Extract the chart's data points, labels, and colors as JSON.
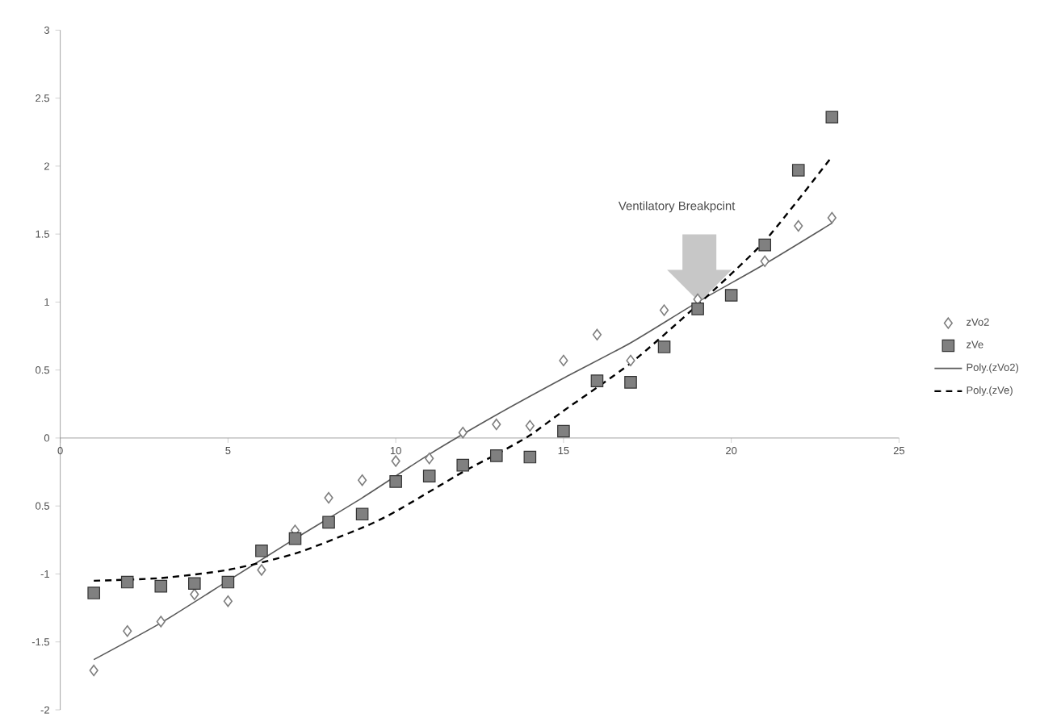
{
  "chart_data": {
    "type": "scatter",
    "x": [
      1,
      2,
      3,
      4,
      5,
      6,
      7,
      8,
      9,
      10,
      11,
      12,
      13,
      14,
      15,
      16,
      17,
      18,
      19,
      20,
      21,
      22,
      23
    ],
    "series": [
      {
        "name": "zVo2",
        "marker": "diamond",
        "color": "#7f7f7f",
        "values": [
          -1.71,
          -1.42,
          -1.35,
          -1.15,
          -1.2,
          -0.97,
          -0.68,
          -0.44,
          -0.31,
          -0.17,
          -0.15,
          0.04,
          0.1,
          0.09,
          0.57,
          0.76,
          0.57,
          0.94,
          1.02,
          null,
          1.3,
          1.56,
          1.62
        ]
      },
      {
        "name": "zVe",
        "marker": "square",
        "color": "#808080",
        "values": [
          -1.14,
          -1.06,
          -1.09,
          -1.07,
          -1.06,
          -0.83,
          -0.74,
          -0.62,
          -0.56,
          -0.32,
          -0.28,
          -0.2,
          -0.13,
          -0.14,
          0.05,
          0.42,
          0.41,
          0.67,
          0.95,
          1.05,
          1.42,
          1.97,
          2.36
        ]
      },
      {
        "name": "Poly.(zVo2)",
        "type": "line",
        "marker": "none",
        "line_style": "solid",
        "color": "#595959",
        "x": [
          1,
          3,
          5,
          7,
          9,
          11,
          13,
          15,
          17,
          19,
          21,
          23
        ],
        "values": [
          -1.63,
          -1.36,
          -1.05,
          -0.74,
          -0.44,
          -0.12,
          0.17,
          0.44,
          0.7,
          1.0,
          1.28,
          1.58
        ]
      },
      {
        "name": "Poly.(zVe)",
        "type": "line",
        "marker": "none",
        "line_style": "dashed",
        "color": "#000000",
        "x": [
          1,
          3,
          5,
          7,
          9,
          10,
          12,
          13,
          14,
          15,
          17,
          19,
          21,
          23
        ],
        "values": [
          -1.05,
          -1.03,
          -0.97,
          -0.85,
          -0.66,
          -0.54,
          -0.25,
          -0.12,
          0.02,
          0.2,
          0.55,
          0.98,
          1.45,
          2.07
        ]
      }
    ],
    "xlim": [
      0,
      25
    ],
    "xticks": [
      0,
      5,
      10,
      15,
      20,
      25
    ],
    "ylim": [
      -2,
      3
    ],
    "yticks": [
      -2,
      -1.5,
      -1,
      {
        "value": -0.5,
        "label": "0.5"
      },
      0,
      0.5,
      1,
      1.5,
      2,
      2.5,
      3
    ],
    "grid": false,
    "legend": "right",
    "annotations": [
      "Ventilatory Breakpcint"
    ]
  }
}
